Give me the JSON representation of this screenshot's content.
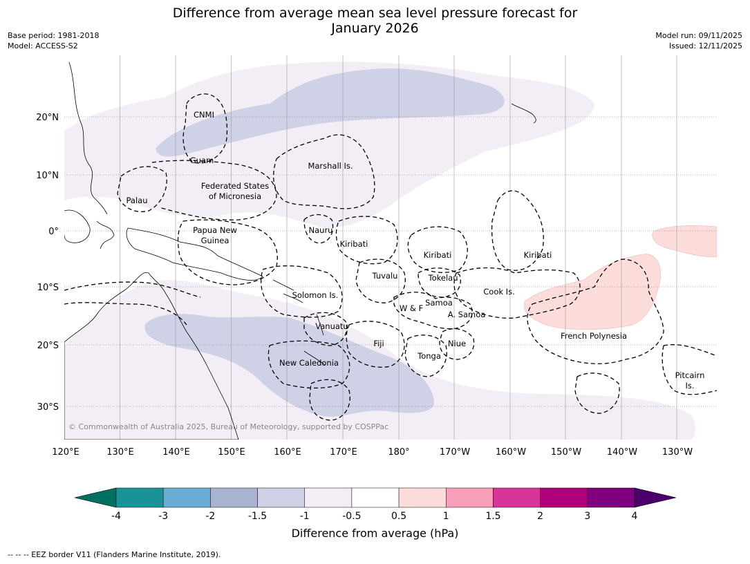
{
  "header": {
    "title_line1": "Difference from average mean sea level pressure forecast for",
    "title_line2": "January 2026",
    "base_period": "Base period: 1981-2018",
    "model": "Model: ACCESS-S2",
    "model_run": "Model run: 09/11/2025",
    "issued": "Issued: 12/11/2025"
  },
  "map": {
    "lon_ticks": [
      "120°E",
      "130°E",
      "140°E",
      "150°E",
      "160°E",
      "170°E",
      "180°",
      "170°W",
      "160°W",
      "150°W",
      "140°W",
      "130°W"
    ],
    "lat_ticks": [
      "20°N",
      "10°N",
      "0°",
      "10°S",
      "20°S",
      "30°S"
    ],
    "region_labels": [
      "CNMI",
      "Guam",
      "Marshall Is.",
      "Federated States",
      "of Micronesia",
      "Palau",
      "Nauru",
      "Papua New",
      "Guinea",
      "Kiribati",
      "Kiribati",
      "Kiribati",
      "Tuvalu",
      "Tokelau",
      "Solomon Is.",
      "Cook Is.",
      "W & F",
      "Samoa",
      "A. Samoa",
      "Vanuatu",
      "Fiji",
      "Niue",
      "French Polynesia",
      "Tonga",
      "New Caledonia",
      "Pitcairn",
      "Is."
    ],
    "copyright": "© Commonwealth of Australia 2025, Bureau of Meteorology, supported by COSPPac"
  },
  "colorbar": {
    "ticks": [
      "-4",
      "-3",
      "-2",
      "-1.5",
      "-1",
      "-0.5",
      "0.5",
      "1",
      "1.5",
      "2",
      "3",
      "4"
    ],
    "colors": [
      "#1a9299",
      "#6aaed6",
      "#a9b4d1",
      "#cfd1e6",
      "#f3eef6",
      "#ffffff",
      "#fddcdc",
      "#f89eb8",
      "#d7359a",
      "#b0007a",
      "#7e007e"
    ],
    "under_color": "#007060",
    "over_color": "#4a0068",
    "label": "Difference from average (hPa)"
  },
  "footer": "--  --  -- EEZ border V11 (Flanders Marine Institute, 2019)."
}
